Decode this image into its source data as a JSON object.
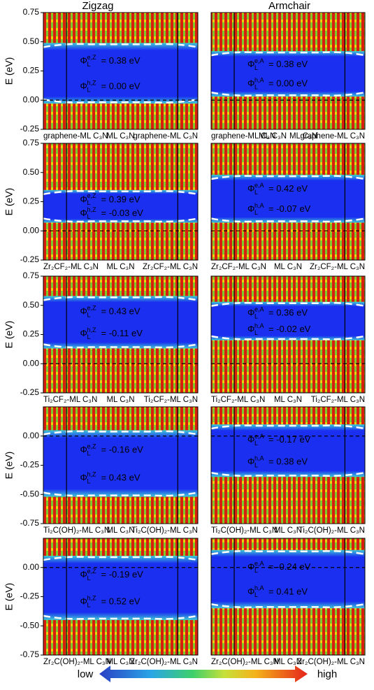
{
  "column_titles": [
    "Zigzag",
    "Armchair"
  ],
  "colorbar": {
    "low": "low",
    "high": "high"
  },
  "chart_data": [
    {
      "type": "heatmap",
      "ylabel": "E (eV)",
      "ylim": [
        -0.25,
        0.75
      ],
      "yticks": [
        {
          "value": -0.25,
          "label": "-0.25"
        },
        {
          "value": 0,
          "label": "0.00"
        },
        {
          "value": 0.25,
          "label": "0.25"
        },
        {
          "value": 0.5,
          "label": "0.50"
        },
        {
          "value": 0.75,
          "label": "0.75"
        }
      ],
      "xlabels": [
        "graphene-ML C₃N",
        "ML C₃N",
        "graphene-ML C₃N"
      ],
      "annotations": [
        {
          "symbol": "Φ",
          "sub": "L",
          "sup": "e,Z",
          "text": "= 0.38 eV"
        },
        {
          "symbol": "Φ",
          "sub": "L",
          "sup": "h,Z",
          "text": "= 0.00 eV"
        }
      ]
    },
    {
      "type": "heatmap",
      "xlabels": [
        "graphene-ML C₃N",
        "ML C₃N",
        "ML C₃N",
        "graphene-ML C₃N"
      ],
      "annotations": [
        {
          "symbol": "Φ",
          "sub": "L",
          "sup": "e,A",
          "text": "= 0.38 eV"
        },
        {
          "symbol": "Φ",
          "sub": "L",
          "sup": "h,A",
          "text": "= 0.00 eV"
        }
      ]
    },
    {
      "type": "heatmap",
      "ylabel": "E (eV)",
      "ylim": [
        -0.25,
        0.75
      ],
      "yticks": [
        {
          "value": -0.25,
          "label": "-0.25"
        },
        {
          "value": 0,
          "label": "0.00"
        },
        {
          "value": 0.25,
          "label": "0.25"
        },
        {
          "value": 0.5,
          "label": "0.50"
        },
        {
          "value": 0.75,
          "label": "0.75"
        }
      ],
      "xlabels": [
        "Zr₂CF₂-ML C₃N",
        "ML C₃N",
        "Zr₂CF₂-ML C₃N"
      ],
      "annotations": [
        {
          "symbol": "Φ",
          "sub": "L",
          "sup": "e,Z",
          "text": "= 0.39 eV"
        },
        {
          "symbol": "Φ",
          "sub": "L",
          "sup": "h,Z",
          "text": "= -0.03 eV"
        }
      ]
    },
    {
      "type": "heatmap",
      "xlabels": [
        "Zr₂CF₂-ML C₃N",
        "ML C₃N",
        "Zr₂CF₂-ML C₃N"
      ],
      "annotations": [
        {
          "symbol": "Φ",
          "sub": "L",
          "sup": "e,A",
          "text": "= 0.42 eV"
        },
        {
          "symbol": "Φ",
          "sub": "L",
          "sup": "h,A",
          "text": "= -0.07 eV"
        }
      ]
    },
    {
      "type": "heatmap",
      "ylabel": "E (eV)",
      "ylim": [
        -0.25,
        0.75
      ],
      "yticks": [
        {
          "value": -0.25,
          "label": "-0.25"
        },
        {
          "value": 0,
          "label": "0.00"
        },
        {
          "value": 0.25,
          "label": "0.25"
        },
        {
          "value": 0.5,
          "label": "0.50"
        },
        {
          "value": 0.75,
          "label": "0.75"
        }
      ],
      "xlabels": [
        "Ti₂CF₂-ML C₃N",
        "ML C₃N",
        "Ti₂CF₂-ML C₃N"
      ],
      "annotations": [
        {
          "symbol": "Φ",
          "sub": "L",
          "sup": "e,Z",
          "text": "= 0.43 eV"
        },
        {
          "symbol": "Φ",
          "sub": "L",
          "sup": "h,Z",
          "text": "= -0.11 eV"
        }
      ]
    },
    {
      "type": "heatmap",
      "xlabels": [
        "Ti₂CF₂-ML C₃N",
        "ML C₃N",
        "Ti₂CF₂-ML C₃N"
      ],
      "annotations": [
        {
          "symbol": "Φ",
          "sub": "L",
          "sup": "e,A",
          "text": "= 0.36 eV"
        },
        {
          "symbol": "Φ",
          "sub": "L",
          "sup": "h,A",
          "text": "= -0.02 eV"
        }
      ]
    },
    {
      "type": "heatmap",
      "ylabel": "E (eV)",
      "ylim": [
        -0.75,
        0.25
      ],
      "yticks": [
        {
          "value": -0.75,
          "label": "-0.75"
        },
        {
          "value": -0.5,
          "label": "-0.50"
        },
        {
          "value": -0.25,
          "label": "-0.25"
        },
        {
          "value": 0,
          "label": "0.00"
        }
      ],
      "xlabels": [
        "Ti₂C(OH)₂-ML C₃N",
        "ML C₃N",
        "Ti₂C(OH)₂-ML C₃N"
      ],
      "annotations": [
        {
          "symbol": "Φ",
          "sub": "L",
          "sup": "e,Z",
          "text": "= -0.16 eV"
        },
        {
          "symbol": "Φ",
          "sub": "L",
          "sup": "h,Z",
          "text": "= 0.43 eV"
        }
      ]
    },
    {
      "type": "heatmap",
      "xlabels": [
        "Ti₂C(OH)₂-ML C₃N",
        "ML C₃N",
        "Ti₂C(OH)₂-ML C₃N"
      ],
      "annotations": [
        {
          "symbol": "Φ",
          "sub": "L",
          "sup": "e,A",
          "text": "= -0.17 eV"
        },
        {
          "symbol": "Φ",
          "sub": "L",
          "sup": "h,A",
          "text": "= 0.38 eV"
        }
      ]
    },
    {
      "type": "heatmap",
      "ylabel": "E (eV)",
      "ylim": [
        -0.75,
        0.25
      ],
      "yticks": [
        {
          "value": -0.75,
          "label": "-0.75"
        },
        {
          "value": -0.5,
          "label": "-0.50"
        },
        {
          "value": -0.25,
          "label": "-0.25"
        },
        {
          "value": 0,
          "label": "0.00"
        }
      ],
      "xlabels": [
        "Zr₂C(OH)₂-ML C₃N",
        "ML C₃N",
        "Zr₂C(OH)₂-ML C₃N"
      ],
      "annotations": [
        {
          "symbol": "Φ",
          "sub": "L",
          "sup": "e,Z",
          "text": "= -0.19 eV"
        },
        {
          "symbol": "Φ",
          "sub": "L",
          "sup": "h,Z",
          "text": "= 0.52 eV"
        }
      ]
    },
    {
      "type": "heatmap",
      "xlabels": [
        "Zr₂C(OH)₂-ML C₃N",
        "ML C₃N",
        "Zr₂C(OH)₂-ML C₃N"
      ],
      "annotations": [
        {
          "symbol": "Φ",
          "sub": "L",
          "sup": "e,A",
          "text": "= -0.24 eV"
        },
        {
          "symbol": "Φ",
          "sub": "L",
          "sup": "h,A",
          "text": "= 0.41 eV"
        }
      ]
    }
  ]
}
